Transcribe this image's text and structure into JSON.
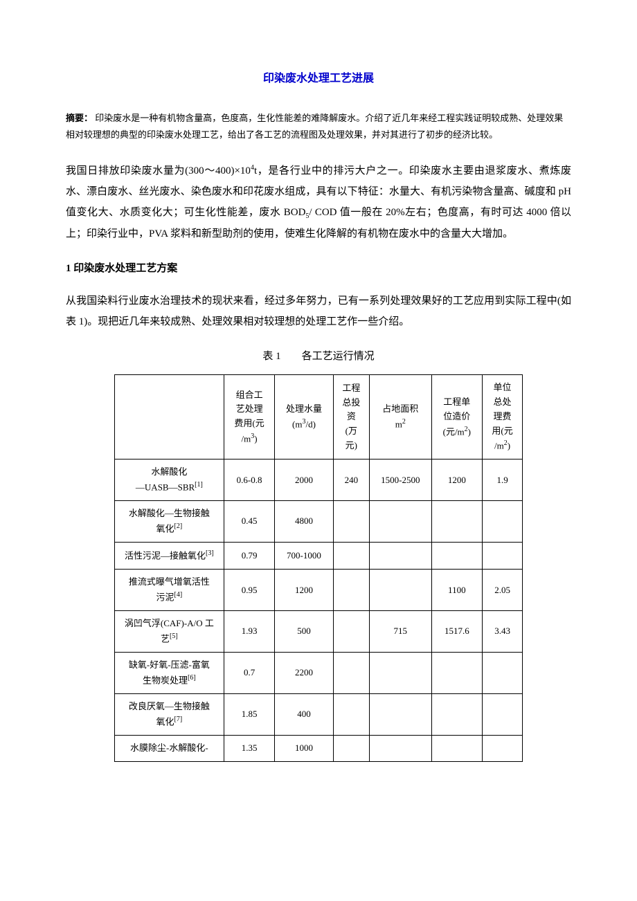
{
  "title": "印染废水处理工艺进展",
  "abstract": {
    "label": "摘要：",
    "text": " 印染废水是一种有机物含量高，色度高，生化性能差的难降解废水。介绍了近几年来经工程实践证明较成熟、处理效果相对较理想的典型的印染废水处理工艺，给出了各工艺的流程图及处理效果，并对其进行了初步的经济比较。"
  },
  "paragraphs": {
    "p1_part1": "我国日排放印染废水量为(300～400)×10",
    "p1_exp": "4",
    "p1_part2": "t，是各行业中的排污大户之一。印染废水主要由退浆废水、煮炼废水、漂白废水、丝光废水、染色废水和印花废水组成，具有以下特征：水量大、有机污染物含量高、碱度和 pH 值变化大、水质变化大；可生化性能差，废水 BOD",
    "p1_sub": "5",
    "p1_part3": "/ COD 值一般在 20%左右；色度高，有时可达 4000 倍以上；印染行业中，PVA 浆料和新型助剂的使用，使难生化降解的有机物在废水中的含量大大增加。",
    "p2": "从我国染料行业废水治理技术的现状来看，经过多年努力，已有一系列处理效果好的工艺应用到实际工程中(如表 1)。现把近几年来较成熟、处理效果相对较理想的处理工艺作一些介绍。"
  },
  "section1_heading": "1 印染废水处理工艺方案",
  "table": {
    "caption": "表 1　　各工艺运行情况",
    "headers": {
      "h0": "",
      "h1_line1": "组合工",
      "h1_line2": "艺处理",
      "h1_line3": "费用(元",
      "h1_line4": "/m",
      "h1_exp": "3",
      "h1_line5": ")",
      "h2_line1": "处理水量",
      "h2_line2": "(m",
      "h2_exp": "3",
      "h2_line3": "/d)",
      "h3_line1": "工程",
      "h3_line2": "总投",
      "h3_line3": "资",
      "h3_line4": "(万",
      "h3_line5": "元)",
      "h4_line1": "占地面积",
      "h4_line2": "m",
      "h4_exp": "2",
      "h5_line1": "工程单",
      "h5_line2": "位造价",
      "h5_line3": "(元/m",
      "h5_exp": "2",
      "h5_line4": ")",
      "h6_line1": "单位",
      "h6_line2": "总处",
      "h6_line3": "理费",
      "h6_line4": "用(元",
      "h6_line5": "/m",
      "h6_exp": "2",
      "h6_line6": ")"
    },
    "rows": [
      {
        "process_l1": "水解酸化",
        "process_l2": "—UASB—SBR",
        "ref": "[1]",
        "cost": "0.6-0.8",
        "volume": "2000",
        "invest": "240",
        "area": "1500-2500",
        "unitprice": "1200",
        "unitcost": "1.9"
      },
      {
        "process_l1": "水解酸化—生物接触",
        "process_l2": "氧化",
        "ref": "[2]",
        "cost": "0.45",
        "volume": "4800",
        "invest": "",
        "area": "",
        "unitprice": "",
        "unitcost": ""
      },
      {
        "process_l1": "活性污泥—接触氧化",
        "process_l2": "",
        "ref": "[3]",
        "cost": "0.79",
        "volume": "700-1000",
        "invest": "",
        "area": "",
        "unitprice": "",
        "unitcost": ""
      },
      {
        "process_l1": "推流式曝气增氧活性",
        "process_l2": "污泥",
        "ref": "[4]",
        "cost": "0.95",
        "volume": "1200",
        "invest": "",
        "area": "",
        "unitprice": "1100",
        "unitcost": "2.05"
      },
      {
        "process_l1": "涡凹气浮(CAF)-A/O 工",
        "process_l2": "艺",
        "ref": "[5]",
        "cost": "1.93",
        "volume": "500",
        "invest": "",
        "area": "715",
        "unitprice": "1517.6",
        "unitcost": "3.43"
      },
      {
        "process_l1": "缺氧-好氧-压滤-富氧",
        "process_l2": "生物炭处理",
        "ref": "[6]",
        "cost": "0.7",
        "volume": "2200",
        "invest": "",
        "area": "",
        "unitprice": "",
        "unitcost": ""
      },
      {
        "process_l1": "改良厌氧—生物接触",
        "process_l2": "氧化",
        "ref": "[7]",
        "cost": "1.85",
        "volume": "400",
        "invest": "",
        "area": "",
        "unitprice": "",
        "unitcost": ""
      },
      {
        "process_l1": "水膜除尘-水解酸化-",
        "process_l2": "",
        "ref": "",
        "cost": "1.35",
        "volume": "1000",
        "invest": "",
        "area": "",
        "unitprice": "",
        "unitcost": ""
      }
    ]
  }
}
